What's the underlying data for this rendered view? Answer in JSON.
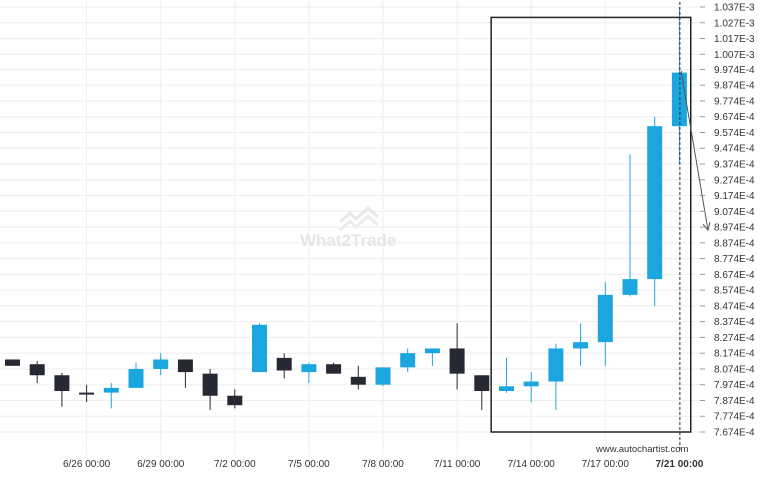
{
  "chart_data": {
    "type": "candlestick",
    "y_ticks": [
      "1.037E-3",
      "1.027E-3",
      "1.017E-3",
      "1.007E-3",
      "9.974E-4",
      "9.874E-4",
      "9.774E-4",
      "9.674E-4",
      "9.574E-4",
      "9.474E-4",
      "9.374E-4",
      "9.274E-4",
      "9.174E-4",
      "9.074E-4",
      "8.974E-4",
      "8.874E-4",
      "8.774E-4",
      "8.674E-4",
      "8.574E-4",
      "8.474E-4",
      "8.374E-4",
      "8.274E-4",
      "8.174E-4",
      "8.074E-4",
      "7.974E-4",
      "7.874E-4",
      "7.774E-4",
      "7.674E-4"
    ],
    "y_tick_values": [
      0.001037,
      0.001027,
      0.001017,
      0.001007,
      0.0009974,
      0.0009874,
      0.0009774,
      0.0009674,
      0.0009574,
      0.0009474,
      0.0009374,
      0.0009274,
      0.0009174,
      0.0009074,
      0.0008974,
      0.0008874,
      0.0008774,
      0.0008674,
      0.0008574,
      0.0008474,
      0.0008374,
      0.0008274,
      0.0008174,
      0.0008074,
      0.0007974,
      0.0007874,
      0.0007774,
      0.0007674
    ],
    "ylim": [
      0.0007674,
      0.001037
    ],
    "x_labels": [
      {
        "label": "6/26 00:00",
        "index": 3
      },
      {
        "label": "6/29 00:00",
        "index": 6
      },
      {
        "label": "7/2 00:00",
        "index": 9
      },
      {
        "label": "7/5 00:00",
        "index": 12
      },
      {
        "label": "7/8 00:00",
        "index": 15
      },
      {
        "label": "7/11 00:00",
        "index": 18
      },
      {
        "label": "7/14 00:00",
        "index": 21
      },
      {
        "label": "7/17 00:00",
        "index": 24
      },
      {
        "label": "7/21 00:00",
        "index": 27,
        "bold": true
      }
    ],
    "candles": [
      {
        "o": 0.0008134,
        "h": 0.0008134,
        "l": 0.0008094,
        "c": 0.0008094,
        "dir": "down"
      },
      {
        "o": 0.0008104,
        "h": 0.0008124,
        "l": 0.0007984,
        "c": 0.0008034,
        "dir": "down"
      },
      {
        "o": 0.0008034,
        "h": 0.0008049,
        "l": 0.0007834,
        "c": 0.0007934,
        "dir": "down"
      },
      {
        "o": 0.0007924,
        "h": 0.0007974,
        "l": 0.0007864,
        "c": 0.0007919,
        "dir": "down"
      },
      {
        "o": 0.0007924,
        "h": 0.0007984,
        "l": 0.0007824,
        "c": 0.0007954,
        "dir": "up"
      },
      {
        "o": 0.0007954,
        "h": 0.0008114,
        "l": 0.0007954,
        "c": 0.0008074,
        "dir": "up"
      },
      {
        "o": 0.0008074,
        "h": 0.0008174,
        "l": 0.0008034,
        "c": 0.0008134,
        "dir": "up"
      },
      {
        "o": 0.0008134,
        "h": 0.0008134,
        "l": 0.0007954,
        "c": 0.0008054,
        "dir": "down"
      },
      {
        "o": 0.0008044,
        "h": 0.0008074,
        "l": 0.0007814,
        "c": 0.0007904,
        "dir": "down"
      },
      {
        "o": 0.0007904,
        "h": 0.0007944,
        "l": 0.0007824,
        "c": 0.0007844,
        "dir": "down"
      },
      {
        "o": 0.0008054,
        "h": 0.0008364,
        "l": 0.0008054,
        "c": 0.0008354,
        "dir": "up"
      },
      {
        "o": 0.0008144,
        "h": 0.0008174,
        "l": 0.0008014,
        "c": 0.0008064,
        "dir": "down"
      },
      {
        "o": 0.0008054,
        "h": 0.0008114,
        "l": 0.0007984,
        "c": 0.0008104,
        "dir": "up"
      },
      {
        "o": 0.0008104,
        "h": 0.0008114,
        "l": 0.0008044,
        "c": 0.0008044,
        "dir": "down"
      },
      {
        "o": 0.0008024,
        "h": 0.0008094,
        "l": 0.0007944,
        "c": 0.0007974,
        "dir": "down"
      },
      {
        "o": 0.0007974,
        "h": 0.0008084,
        "l": 0.0007964,
        "c": 0.0008084,
        "dir": "up"
      },
      {
        "o": 0.0008084,
        "h": 0.0008204,
        "l": 0.0008054,
        "c": 0.0008174,
        "dir": "up"
      },
      {
        "o": 0.0008174,
        "h": 0.0008204,
        "l": 0.0008094,
        "c": 0.0008204,
        "dir": "up"
      },
      {
        "o": 0.0008204,
        "h": 0.0008364,
        "l": 0.0007944,
        "c": 0.0008044,
        "dir": "down"
      },
      {
        "o": 0.0008034,
        "h": 0.0008034,
        "l": 0.0007814,
        "c": 0.0007934,
        "dir": "down"
      },
      {
        "o": 0.0007934,
        "h": 0.0008144,
        "l": 0.0007924,
        "c": 0.0007964,
        "dir": "up"
      },
      {
        "o": 0.0007964,
        "h": 0.0008054,
        "l": 0.0007864,
        "c": 0.0007994,
        "dir": "up"
      },
      {
        "o": 0.0007994,
        "h": 0.0008234,
        "l": 0.0007814,
        "c": 0.0008204,
        "dir": "up"
      },
      {
        "o": 0.0008204,
        "h": 0.0008364,
        "l": 0.0008094,
        "c": 0.0008244,
        "dir": "up"
      },
      {
        "o": 0.0008244,
        "h": 0.0008624,
        "l": 0.0008094,
        "c": 0.0008544,
        "dir": "up"
      },
      {
        "o": 0.0008544,
        "h": 0.0009434,
        "l": 0.0008534,
        "c": 0.0008644,
        "dir": "up"
      },
      {
        "o": 0.0008644,
        "h": 0.0009674,
        "l": 0.0008474,
        "c": 0.0009614,
        "dir": "up"
      },
      {
        "o": 0.0009614,
        "h": 0.001037,
        "l": 0.0009374,
        "c": 0.0009954,
        "dir": "up"
      }
    ],
    "colors": {
      "up": "#1ba6e0",
      "down": "#262833",
      "grid": "#eeeeee",
      "box": "#222222",
      "arrow": "#555555"
    },
    "highlight": {
      "from_index": 20,
      "to_index": 27,
      "top": 0.0010304,
      "bottom": 0.0007674
    },
    "projection_arrow": {
      "from_value": 0.0009954,
      "to_value": 0.0008954,
      "direction": "down"
    },
    "grid": true,
    "watermark": "What2Trade",
    "source_label": "www.autochartist.com"
  }
}
